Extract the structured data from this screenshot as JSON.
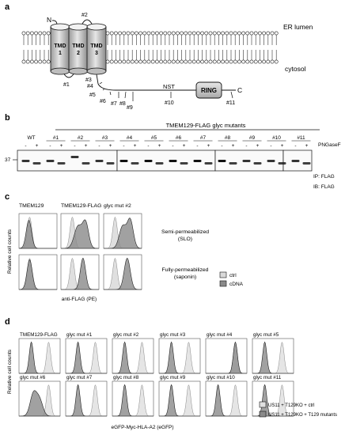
{
  "panel_a": {
    "letter": "a",
    "er_lumen": "ER lumen",
    "cytosol": "cytosol",
    "n_term": "N",
    "c_term": "C",
    "tmd": [
      {
        "l1": "TMD",
        "l2": "1"
      },
      {
        "l1": "TMD",
        "l2": "2"
      },
      {
        "l1": "TMD",
        "l2": "3"
      }
    ],
    "ring": "RING",
    "nst": "NST",
    "sites": [
      "#1",
      "#2",
      "#3",
      "#4",
      "#5",
      "#6",
      "#7",
      "#8",
      "#9",
      "#10",
      "#11"
    ]
  },
  "panel_b": {
    "letter": "b",
    "group_title": "TMEM129-FLAG glyc mutants",
    "lanes": [
      "WT",
      "#1",
      "#2",
      "#3",
      "#4",
      "#5",
      "#6",
      "#7",
      "#8",
      "#9",
      "#10",
      "#11"
    ],
    "minus": "-",
    "plus": "+",
    "pngase": "PNGaseF",
    "marker": "37",
    "ip": "IP: FLAG",
    "ib": "IB: FLAG"
  },
  "panel_c": {
    "letter": "c",
    "ylabel": "Relative cell counts",
    "xlabel": "anti-FLAG (PE)",
    "cols": [
      "TMEM129",
      "TMEM129-FLAG",
      "glyc mut #2"
    ],
    "row1_l1": "Semi-permeabilized",
    "row1_l2": "(SLO)",
    "row2_l1": "Fully-permeabilized",
    "row2_l2": "(saponin)",
    "legend_ctrl": "ctrl",
    "legend_cdna": "cDNA",
    "colors": {
      "ctrl": "#d9d9d9",
      "sample": "#8a8a8a"
    }
  },
  "panel_d": {
    "letter": "d",
    "ylabel": "Relative cell counts",
    "xlabel": "eGFP-Myc-HLA-A2 (eGFP)",
    "row1": [
      "TMEM129-FLAG",
      "glyc mut #1",
      "glyc mut #2",
      "glyc mut #3",
      "glyc mut #4",
      "glyc mut #5"
    ],
    "row2": [
      "glyc mut #6",
      "glyc mut #7",
      "glyc mut #8",
      "glyc mut #9",
      "glyc mut #10",
      "glyc mut #11"
    ],
    "legend1": "US11 + T129KO + ctrl",
    "legend2": "US11 + T129KO + T129 mutants"
  }
}
